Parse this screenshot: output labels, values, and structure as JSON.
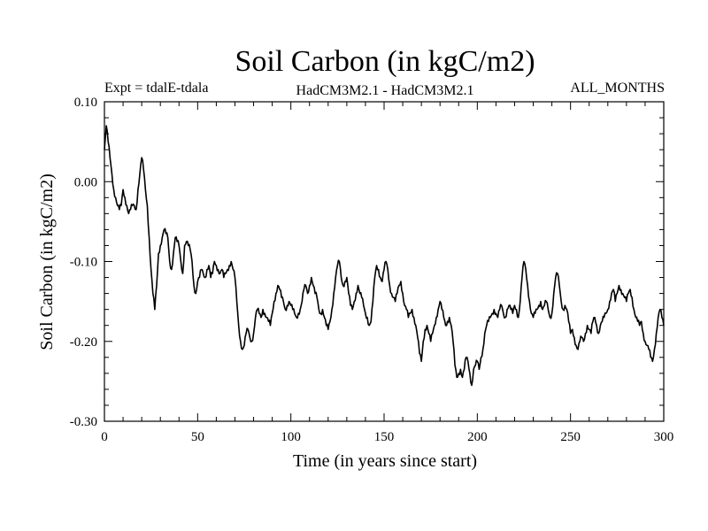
{
  "chart_data": {
    "type": "line",
    "title": "Soil Carbon (in kgC/m2)",
    "subtitle_left": "Expt = tdalE-tdala",
    "subtitle_center": "HadCM3M2.1 - HadCM3M2.1",
    "subtitle_right": "ALL_MONTHS",
    "xlabel": "Time (in years since start)",
    "ylabel": "Soil Carbon (in kgC/m2)",
    "xlim": [
      0,
      300
    ],
    "ylim": [
      -0.3,
      0.1
    ],
    "x_ticks": [
      0,
      50,
      100,
      150,
      200,
      250,
      300
    ],
    "x_tick_labels": [
      "0",
      "50",
      "100",
      "150",
      "200",
      "250",
      "300"
    ],
    "y_ticks": [
      0.1,
      0.0,
      -0.1,
      -0.2,
      -0.3
    ],
    "y_tick_labels": [
      "0.10",
      "0.00",
      "-0.10",
      "-0.20",
      "-0.30"
    ],
    "grid": false,
    "line_color": "#000000",
    "series": [
      {
        "x": [
          0,
          1,
          2,
          3,
          4,
          5,
          6,
          7,
          8,
          9,
          10,
          11,
          12,
          13,
          14,
          15,
          16,
          17,
          18,
          19,
          20,
          21,
          22,
          23,
          24,
          25,
          26,
          27,
          28,
          29,
          30,
          31,
          32,
          33,
          34,
          35,
          36,
          37,
          38,
          39,
          40,
          41,
          42,
          43,
          44,
          45,
          46,
          47,
          48,
          49,
          50,
          51,
          52,
          53,
          54,
          55,
          56,
          57,
          58,
          59,
          60,
          61,
          62,
          63,
          64,
          65,
          66,
          67,
          68,
          69,
          70,
          71,
          72,
          73,
          74,
          75,
          76,
          77,
          78,
          79,
          80,
          81,
          82,
          83,
          84,
          85,
          86,
          87,
          88,
          89,
          90,
          91,
          92,
          93,
          94,
          95,
          96,
          97,
          98,
          99,
          100,
          101,
          102,
          103,
          104,
          105,
          106,
          107,
          108,
          109,
          110,
          111,
          112,
          113,
          114,
          115,
          116,
          117,
          118,
          119,
          120,
          121,
          122,
          123,
          124,
          125,
          126,
          127,
          128,
          129,
          130,
          131,
          132,
          133,
          134,
          135,
          136,
          137,
          138,
          139,
          140,
          141,
          142,
          143,
          144,
          145,
          146,
          147,
          148,
          149,
          150,
          151,
          152,
          153,
          154,
          155,
          156,
          157,
          158,
          159,
          160,
          161,
          162,
          163,
          164,
          165,
          166,
          167,
          168,
          169,
          170,
          171,
          172,
          173,
          174,
          175,
          176,
          177,
          178,
          179,
          180,
          181,
          182,
          183,
          184,
          185,
          186,
          187,
          188,
          189,
          190,
          191,
          192,
          193,
          194,
          195,
          196,
          197,
          198,
          199,
          200,
          201,
          202,
          203,
          204,
          205,
          206,
          207,
          208,
          209,
          210,
          211,
          212,
          213,
          214,
          215,
          216,
          217,
          218,
          219,
          220,
          221,
          222,
          223,
          224,
          225,
          226,
          227,
          228,
          229,
          230,
          231,
          232,
          233,
          234,
          235,
          236,
          237,
          238,
          239,
          240,
          241,
          242,
          243,
          244,
          245,
          246,
          247,
          248,
          249,
          250,
          251,
          252,
          253,
          254,
          255,
          256,
          257,
          258,
          259,
          260,
          261,
          262,
          263,
          264,
          265,
          266,
          267,
          268,
          269,
          270,
          271,
          272,
          273,
          274,
          275,
          276,
          277,
          278,
          279,
          280,
          281,
          282,
          283,
          284,
          285,
          286,
          287,
          288,
          289,
          290,
          291,
          292,
          293,
          294,
          295,
          296,
          297,
          298,
          299,
          300
        ],
        "y": [
          0.04,
          0.07,
          0.05,
          0.03,
          0.01,
          -0.01,
          -0.02,
          -0.03,
          -0.035,
          -0.03,
          -0.01,
          -0.02,
          -0.03,
          -0.04,
          -0.035,
          -0.03,
          -0.03,
          -0.035,
          -0.01,
          0.01,
          0.03,
          0.015,
          -0.01,
          -0.03,
          -0.07,
          -0.11,
          -0.14,
          -0.16,
          -0.13,
          -0.09,
          -0.08,
          -0.07,
          -0.06,
          -0.065,
          -0.07,
          -0.1,
          -0.11,
          -0.09,
          -0.07,
          -0.075,
          -0.08,
          -0.1,
          -0.115,
          -0.08,
          -0.075,
          -0.08,
          -0.085,
          -0.1,
          -0.13,
          -0.14,
          -0.125,
          -0.12,
          -0.11,
          -0.115,
          -0.12,
          -0.11,
          -0.105,
          -0.12,
          -0.115,
          -0.1,
          -0.105,
          -0.11,
          -0.115,
          -0.11,
          -0.12,
          -0.115,
          -0.11,
          -0.105,
          -0.1,
          -0.11,
          -0.12,
          -0.15,
          -0.18,
          -0.2,
          -0.21,
          -0.205,
          -0.19,
          -0.185,
          -0.195,
          -0.2,
          -0.19,
          -0.17,
          -0.16,
          -0.165,
          -0.17,
          -0.16,
          -0.165,
          -0.17,
          -0.175,
          -0.18,
          -0.165,
          -0.15,
          -0.14,
          -0.13,
          -0.135,
          -0.145,
          -0.15,
          -0.16,
          -0.155,
          -0.15,
          -0.155,
          -0.16,
          -0.165,
          -0.17,
          -0.165,
          -0.16,
          -0.15,
          -0.135,
          -0.13,
          -0.14,
          -0.13,
          -0.12,
          -0.13,
          -0.14,
          -0.145,
          -0.16,
          -0.165,
          -0.16,
          -0.17,
          -0.18,
          -0.185,
          -0.175,
          -0.16,
          -0.14,
          -0.12,
          -0.105,
          -0.1,
          -0.12,
          -0.13,
          -0.125,
          -0.12,
          -0.14,
          -0.155,
          -0.16,
          -0.15,
          -0.14,
          -0.13,
          -0.14,
          -0.145,
          -0.155,
          -0.165,
          -0.17,
          -0.18,
          -0.175,
          -0.15,
          -0.12,
          -0.105,
          -0.11,
          -0.12,
          -0.125,
          -0.11,
          -0.1,
          -0.11,
          -0.13,
          -0.14,
          -0.145,
          -0.15,
          -0.14,
          -0.13,
          -0.125,
          -0.14,
          -0.155,
          -0.16,
          -0.17,
          -0.165,
          -0.16,
          -0.17,
          -0.18,
          -0.195,
          -0.215,
          -0.225,
          -0.2,
          -0.185,
          -0.18,
          -0.19,
          -0.2,
          -0.19,
          -0.18,
          -0.17,
          -0.16,
          -0.15,
          -0.16,
          -0.17,
          -0.18,
          -0.175,
          -0.17,
          -0.18,
          -0.2,
          -0.23,
          -0.245,
          -0.24,
          -0.235,
          -0.245,
          -0.235,
          -0.22,
          -0.225,
          -0.24,
          -0.255,
          -0.235,
          -0.23,
          -0.225,
          -0.235,
          -0.22,
          -0.21,
          -0.19,
          -0.18,
          -0.175,
          -0.17,
          -0.165,
          -0.16,
          -0.165,
          -0.17,
          -0.16,
          -0.155,
          -0.165,
          -0.17,
          -0.16,
          -0.155,
          -0.16,
          -0.165,
          -0.155,
          -0.16,
          -0.17,
          -0.15,
          -0.12,
          -0.1,
          -0.11,
          -0.13,
          -0.15,
          -0.165,
          -0.17,
          -0.165,
          -0.16,
          -0.155,
          -0.15,
          -0.16,
          -0.155,
          -0.15,
          -0.16,
          -0.17,
          -0.165,
          -0.14,
          -0.12,
          -0.115,
          -0.13,
          -0.15,
          -0.16,
          -0.155,
          -0.16,
          -0.175,
          -0.19,
          -0.185,
          -0.195,
          -0.205,
          -0.21,
          -0.2,
          -0.195,
          -0.2,
          -0.19,
          -0.18,
          -0.185,
          -0.19,
          -0.175,
          -0.17,
          -0.18,
          -0.19,
          -0.18,
          -0.175,
          -0.17,
          -0.165,
          -0.16,
          -0.15,
          -0.14,
          -0.135,
          -0.15,
          -0.14,
          -0.13,
          -0.135,
          -0.14,
          -0.145,
          -0.15,
          -0.14,
          -0.135,
          -0.145,
          -0.16,
          -0.17,
          -0.175,
          -0.18,
          -0.175,
          -0.19,
          -0.2,
          -0.205,
          -0.21,
          -0.22,
          -0.225,
          -0.21,
          -0.19,
          -0.17,
          -0.16,
          -0.17,
          -0.18
        ]
      }
    ]
  }
}
